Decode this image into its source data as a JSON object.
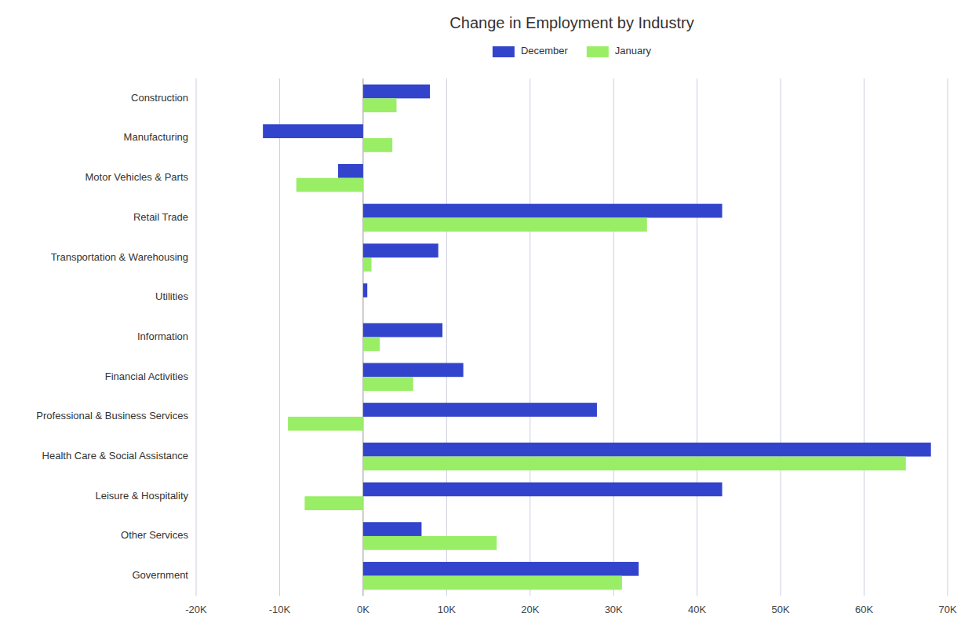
{
  "chart_data": {
    "type": "bar",
    "orientation": "horizontal",
    "title": "Change in Employment by Industry",
    "categories": [
      "Construction",
      "Manufacturing",
      "Motor Vehicles & Parts",
      "Retail Trade",
      "Transportation & Warehousing",
      "Utilities",
      "Information",
      "Financial Activities",
      "Professional & Business Services",
      "Health Care & Social Assistance",
      "Leisure & Hospitality",
      "Other Services",
      "Government"
    ],
    "series": [
      {
        "name": "December",
        "color": "#3344cc",
        "values": [
          8000,
          -12000,
          -3000,
          43000,
          9000,
          500,
          9500,
          12000,
          28000,
          68000,
          43000,
          7000,
          33000
        ]
      },
      {
        "name": "January",
        "color": "#99ee66",
        "values": [
          4000,
          3500,
          -8000,
          34000,
          1000,
          0,
          2000,
          6000,
          -9000,
          65000,
          -7000,
          16000,
          31000
        ]
      }
    ],
    "xlim": [
      -20000,
      70000
    ],
    "xticks": [
      {
        "value": -20000,
        "label": "-20K"
      },
      {
        "value": -10000,
        "label": "-10K"
      },
      {
        "value": 0,
        "label": "0K"
      },
      {
        "value": 10000,
        "label": "10K"
      },
      {
        "value": 20000,
        "label": "20K"
      },
      {
        "value": 30000,
        "label": "30K"
      },
      {
        "value": 40000,
        "label": "40K"
      },
      {
        "value": 50000,
        "label": "50K"
      },
      {
        "value": 60000,
        "label": "60K"
      },
      {
        "value": 70000,
        "label": "70K"
      }
    ],
    "grid": true,
    "legend": "top"
  }
}
